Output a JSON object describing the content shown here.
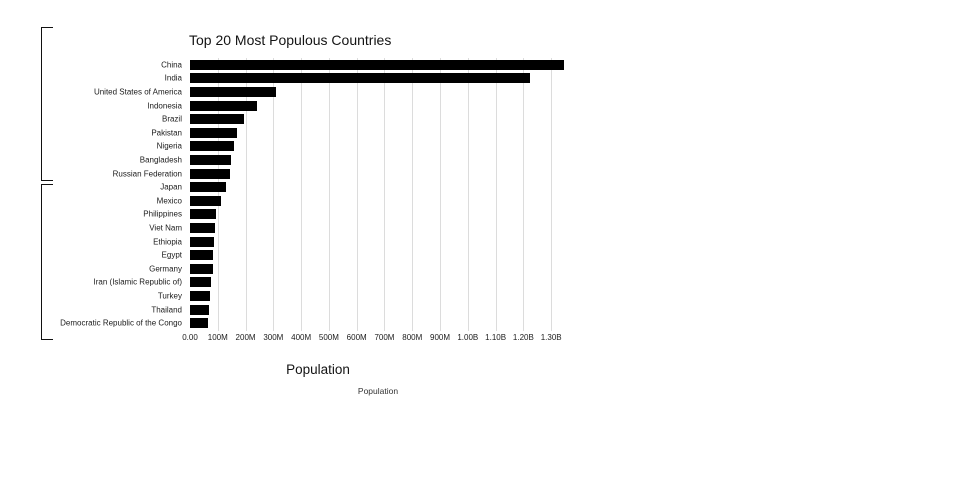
{
  "title": "Top 20 Most Populous Countries",
  "axis": {
    "xlabel": "Population",
    "legend_label": "Population"
  },
  "chart_data": {
    "type": "bar",
    "orientation": "horizontal",
    "title": "Top 20 Most Populous Countries",
    "xlabel": "Population",
    "ylabel": "",
    "categories": [
      "China",
      "India",
      "United States of America",
      "Indonesia",
      "Brazil",
      "Pakistan",
      "Nigeria",
      "Bangladesh",
      "Russian Federation",
      "Japan",
      "Mexico",
      "Philippines",
      "Viet Nam",
      "Ethiopia",
      "Egypt",
      "Germany",
      "Iran (Islamic Republic of)",
      "Turkey",
      "Thailand",
      "Democratic Republic of the Congo"
    ],
    "values_millions": [
      1347,
      1224,
      308,
      240,
      195,
      170,
      158,
      148,
      143,
      128,
      113,
      93,
      89,
      85,
      82,
      82,
      75,
      73,
      69,
      66
    ],
    "x_ticks": [
      "0.00",
      "100M",
      "200M",
      "300M",
      "400M",
      "500M",
      "600M",
      "700M",
      "800M",
      "900M",
      "1.00B",
      "1.10B",
      "1.20B",
      "1.30B"
    ],
    "x_tick_values_millions": [
      0,
      100,
      200,
      300,
      400,
      500,
      600,
      700,
      800,
      900,
      1000,
      1100,
      1200,
      1300
    ],
    "xmax_millions": 1357,
    "bar_color": "#000000",
    "grid_color": "#dcdcdc",
    "grid": "on",
    "legend_position": "bottom"
  }
}
